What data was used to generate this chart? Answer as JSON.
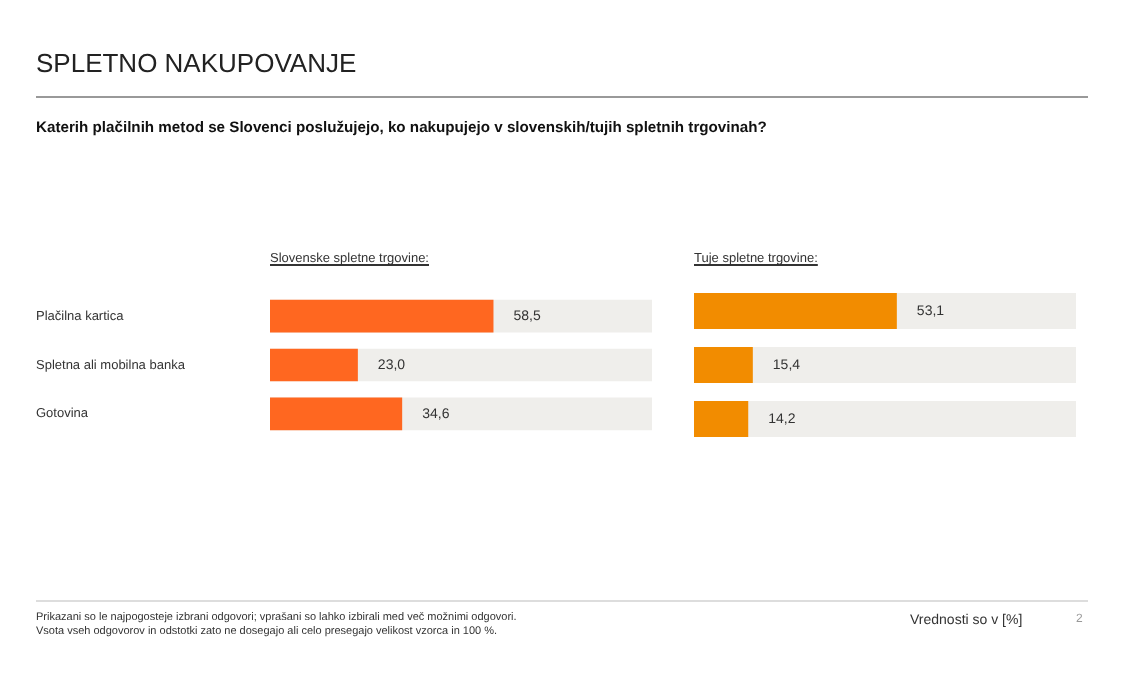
{
  "chart_data": [
    {
      "type": "other",
      "title": "SPLETNO NAKUPOVANJE",
      "subtitle": "Katerih plačilnih metod se Slovenci poslužujejo, ko nakupujejo v slovenskih/tujih spletnih trgovinah?",
      "annotations": [
        "Prikazani so le najpogosteje izbrani odgovori; vprašani so lahko izbirali med več možnimi odgovori.",
        "Vsota vseh odgovorov in odstotki zato ne dosegajo ali celo presegajo velikost vzorca in 100 %.",
        "Vrednosti so v [%]",
        "2"
      ]
    },
    {
      "type": "bar",
      "orientation": "horizontal",
      "title": "Slovenske spletne trgovine:",
      "categories": [
        "Plačilna kartica",
        "Spletna ali mobilna banka",
        "Gotovina"
      ],
      "values": [
        58.5,
        23.0,
        34.6
      ],
      "value_labels": [
        "58,5",
        "23,0",
        "34,6"
      ],
      "color": "#ff6720",
      "xlim": [
        0,
        100
      ],
      "tick_labels": "y"
    },
    {
      "type": "bar",
      "orientation": "horizontal",
      "title": "Tuje spletne trgovine:",
      "categories": [
        null,
        null,
        null
      ],
      "values": [
        53.1,
        15.4,
        14.2
      ],
      "value_labels": [
        "53,1",
        "15,4",
        "14,2"
      ],
      "color": "#f28c00",
      "xlim": [
        0,
        100
      ],
      "tick_labels": false
    }
  ]
}
